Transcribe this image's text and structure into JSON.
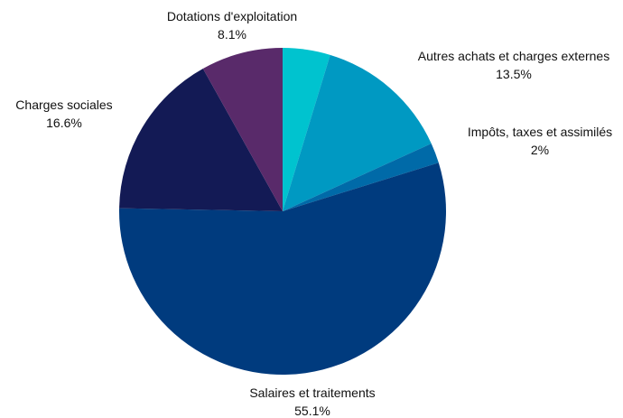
{
  "chart_data": {
    "type": "pie",
    "title": "",
    "start_angle_deg": 0,
    "direction": "clockwise",
    "legend": "none",
    "slices": [
      {
        "label": "",
        "value": 4.7,
        "percent_label": "",
        "color": "#00c3cf"
      },
      {
        "label": "Autres achats et charges externes",
        "value": 13.5,
        "percent_label": "13.5%",
        "color": "#0099c2"
      },
      {
        "label": "Impôts, taxes et assimilés",
        "value": 2.0,
        "percent_label": "2%",
        "color": "#006aa8"
      },
      {
        "label": "Salaires et traitements",
        "value": 55.1,
        "percent_label": "55.1%",
        "color": "#003b7e"
      },
      {
        "label": "Charges sociales",
        "value": 16.6,
        "percent_label": "16.6%",
        "color": "#131a55"
      },
      {
        "label": "Dotations d'exploitation",
        "value": 8.1,
        "percent_label": "8.1%",
        "color": "#592a6a"
      }
    ]
  }
}
